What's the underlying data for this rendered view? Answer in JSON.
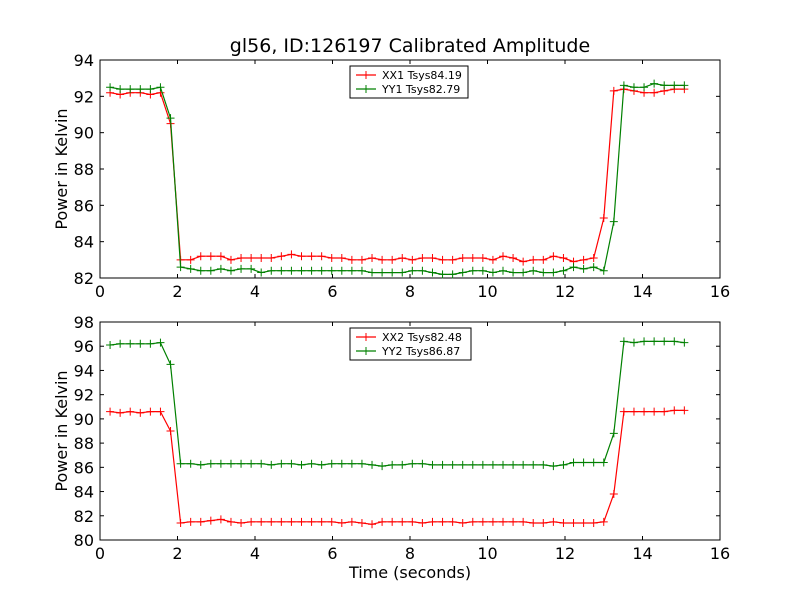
{
  "chart_data": [
    {
      "type": "line",
      "title": "gl56, ID:126197 Calibrated Amplitude",
      "xlabel": "",
      "ylabel": "Power in Kelvin",
      "xlim": [
        0,
        16
      ],
      "ylim": [
        82,
        94
      ],
      "xticks": [
        "0",
        "2",
        "4",
        "6",
        "8",
        "10",
        "12",
        "14",
        "16"
      ],
      "yticks": [
        "82",
        "84",
        "86",
        "88",
        "90",
        "92",
        "94"
      ],
      "legend_position": "upper center",
      "x": [
        0.26,
        0.52,
        0.78,
        1.04,
        1.3,
        1.56,
        1.82,
        2.08,
        2.34,
        2.6,
        2.86,
        3.12,
        3.38,
        3.64,
        3.9,
        4.16,
        4.42,
        4.68,
        4.94,
        5.2,
        5.46,
        5.72,
        5.98,
        6.24,
        6.5,
        6.76,
        7.02,
        7.28,
        7.54,
        7.8,
        8.06,
        8.32,
        8.58,
        8.84,
        9.1,
        9.36,
        9.62,
        9.88,
        10.14,
        10.4,
        10.66,
        10.92,
        11.18,
        11.44,
        11.7,
        11.96,
        12.22,
        12.48,
        12.74,
        13.0,
        13.26,
        13.52,
        13.78,
        14.04,
        14.3,
        14.56,
        14.82,
        15.08
      ],
      "series": [
        {
          "name": "XX1 Tsys84.19",
          "color": "#ff0000",
          "values": [
            92.2,
            92.1,
            92.2,
            92.2,
            92.1,
            92.2,
            90.5,
            83.0,
            83.0,
            83.2,
            83.2,
            83.2,
            83.0,
            83.1,
            83.1,
            83.1,
            83.1,
            83.2,
            83.3,
            83.2,
            83.2,
            83.2,
            83.1,
            83.1,
            83.0,
            83.0,
            83.1,
            83.0,
            83.0,
            83.1,
            83.0,
            83.1,
            83.1,
            83.0,
            83.0,
            83.1,
            83.1,
            83.1,
            83.0,
            83.2,
            83.1,
            82.9,
            83.0,
            83.0,
            83.2,
            83.1,
            82.9,
            83.0,
            83.1,
            85.3,
            92.3,
            92.4,
            92.3,
            92.2,
            92.2,
            92.3,
            92.4,
            92.4
          ]
        },
        {
          "name": "YY1 Tsys82.79",
          "color": "#008000",
          "values": [
            92.5,
            92.4,
            92.4,
            92.4,
            92.4,
            92.5,
            90.8,
            82.6,
            82.5,
            82.4,
            82.4,
            82.5,
            82.4,
            82.5,
            82.5,
            82.3,
            82.4,
            82.4,
            82.4,
            82.4,
            82.4,
            82.4,
            82.4,
            82.4,
            82.4,
            82.4,
            82.3,
            82.3,
            82.3,
            82.3,
            82.4,
            82.4,
            82.3,
            82.2,
            82.2,
            82.3,
            82.4,
            82.4,
            82.3,
            82.4,
            82.3,
            82.3,
            82.4,
            82.3,
            82.3,
            82.4,
            82.6,
            82.5,
            82.6,
            82.4,
            85.1,
            92.6,
            92.5,
            92.5,
            92.7,
            92.6,
            92.6,
            92.6
          ]
        }
      ]
    },
    {
      "type": "line",
      "title": "",
      "xlabel": "Time (seconds)",
      "ylabel": "Power in Kelvin",
      "xlim": [
        0,
        16
      ],
      "ylim": [
        80,
        98
      ],
      "xticks": [
        "0",
        "2",
        "4",
        "6",
        "8",
        "10",
        "12",
        "14",
        "16"
      ],
      "yticks": [
        "80",
        "82",
        "84",
        "86",
        "88",
        "90",
        "92",
        "94",
        "96",
        "98"
      ],
      "legend_position": "upper center",
      "x": [
        0.26,
        0.52,
        0.78,
        1.04,
        1.3,
        1.56,
        1.82,
        2.08,
        2.34,
        2.6,
        2.86,
        3.12,
        3.38,
        3.64,
        3.9,
        4.16,
        4.42,
        4.68,
        4.94,
        5.2,
        5.46,
        5.72,
        5.98,
        6.24,
        6.5,
        6.76,
        7.02,
        7.28,
        7.54,
        7.8,
        8.06,
        8.32,
        8.58,
        8.84,
        9.1,
        9.36,
        9.62,
        9.88,
        10.14,
        10.4,
        10.66,
        10.92,
        11.18,
        11.44,
        11.7,
        11.96,
        12.22,
        12.48,
        12.74,
        13.0,
        13.26,
        13.52,
        13.78,
        14.04,
        14.3,
        14.56,
        14.82,
        15.08
      ],
      "series": [
        {
          "name": "XX2 Tsys82.48",
          "color": "#ff0000",
          "values": [
            90.6,
            90.5,
            90.6,
            90.5,
            90.6,
            90.6,
            89.0,
            81.4,
            81.5,
            81.5,
            81.6,
            81.7,
            81.5,
            81.4,
            81.5,
            81.5,
            81.5,
            81.5,
            81.5,
            81.5,
            81.5,
            81.5,
            81.5,
            81.4,
            81.5,
            81.4,
            81.3,
            81.5,
            81.5,
            81.5,
            81.5,
            81.4,
            81.5,
            81.5,
            81.5,
            81.4,
            81.5,
            81.5,
            81.5,
            81.5,
            81.5,
            81.5,
            81.4,
            81.4,
            81.5,
            81.4,
            81.4,
            81.4,
            81.4,
            81.5,
            83.8,
            90.6,
            90.6,
            90.6,
            90.6,
            90.6,
            90.7,
            90.7
          ]
        },
        {
          "name": "YY2 Tsys86.87",
          "color": "#008000",
          "values": [
            96.1,
            96.2,
            96.2,
            96.2,
            96.2,
            96.3,
            94.5,
            86.3,
            86.3,
            86.2,
            86.3,
            86.3,
            86.3,
            86.3,
            86.3,
            86.3,
            86.2,
            86.3,
            86.3,
            86.2,
            86.3,
            86.2,
            86.3,
            86.3,
            86.3,
            86.3,
            86.2,
            86.1,
            86.2,
            86.2,
            86.3,
            86.3,
            86.2,
            86.2,
            86.2,
            86.2,
            86.2,
            86.2,
            86.2,
            86.2,
            86.2,
            86.2,
            86.2,
            86.2,
            86.1,
            86.2,
            86.4,
            86.4,
            86.4,
            86.4,
            88.8,
            96.4,
            96.3,
            96.4,
            96.4,
            96.4,
            96.4,
            96.3
          ]
        }
      ]
    }
  ]
}
